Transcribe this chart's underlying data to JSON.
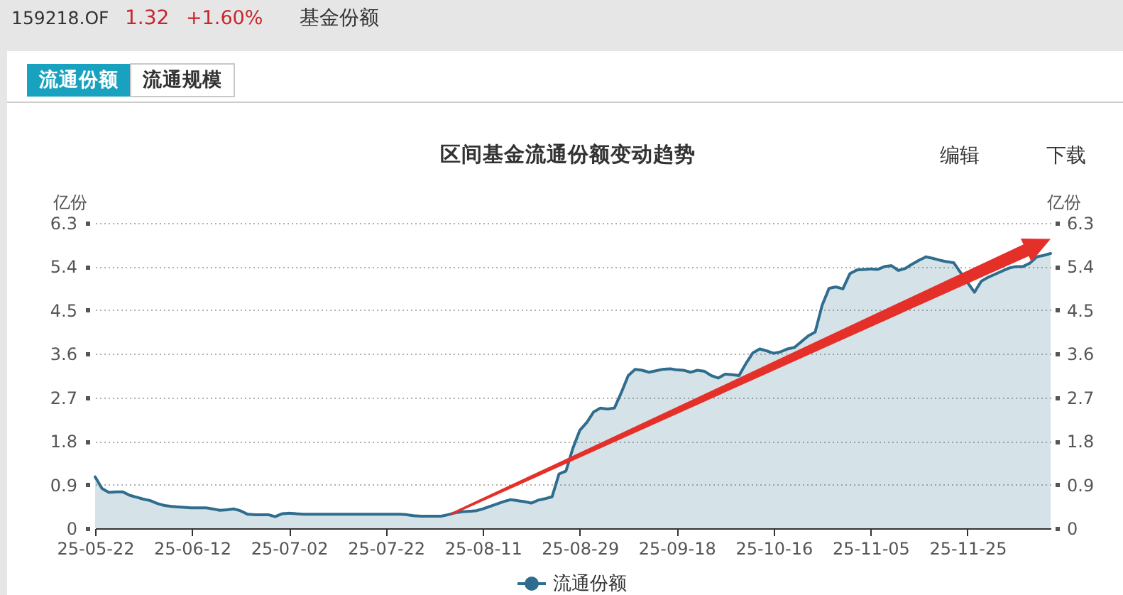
{
  "chart_data": {
    "type": "area",
    "title": "区间基金流通份额变动趋势",
    "ylabel": "亿份",
    "y2label": "亿份",
    "categories": [
      "25-05-22",
      null,
      null,
      null,
      null,
      null,
      null,
      null,
      null,
      null,
      null,
      null,
      null,
      null,
      "25-06-12",
      null,
      null,
      null,
      null,
      null,
      null,
      null,
      null,
      null,
      null,
      null,
      null,
      null,
      "25-07-02",
      null,
      null,
      null,
      null,
      null,
      null,
      null,
      null,
      null,
      null,
      null,
      null,
      null,
      "25-07-22",
      null,
      null,
      null,
      null,
      null,
      null,
      null,
      null,
      null,
      null,
      null,
      null,
      null,
      "25-08-11",
      null,
      null,
      null,
      null,
      null,
      null,
      null,
      null,
      null,
      null,
      null,
      null,
      null,
      "25-08-29",
      null,
      null,
      null,
      null,
      null,
      null,
      null,
      null,
      null,
      null,
      null,
      null,
      null,
      "25-09-18",
      null,
      null,
      null,
      null,
      null,
      null,
      null,
      null,
      null,
      null,
      null,
      null,
      null,
      "25-10-16",
      null,
      null,
      null,
      null,
      null,
      null,
      null,
      null,
      null,
      null,
      null,
      null,
      null,
      "25-11-05",
      null,
      null,
      null,
      null,
      null,
      null,
      null,
      null,
      null,
      null,
      null,
      null,
      null,
      "25-11-25",
      null,
      null,
      null,
      null,
      null,
      null,
      null,
      null,
      null,
      null,
      null,
      null
    ],
    "series": [
      {
        "name": "流通份额",
        "color": "#2e6d8e",
        "values": [
          1.06,
          0.82,
          0.74,
          0.75,
          0.75,
          0.68,
          0.64,
          0.6,
          0.57,
          0.51,
          0.47,
          0.45,
          0.44,
          0.43,
          0.42,
          0.42,
          0.42,
          0.4,
          0.37,
          0.38,
          0.4,
          0.36,
          0.29,
          0.28,
          0.28,
          0.28,
          0.24,
          0.3,
          0.31,
          0.3,
          0.29,
          0.29,
          0.29,
          0.29,
          0.29,
          0.29,
          0.29,
          0.29,
          0.29,
          0.29,
          0.29,
          0.29,
          0.29,
          0.29,
          0.29,
          0.28,
          0.26,
          0.25,
          0.25,
          0.25,
          0.25,
          0.28,
          0.32,
          0.34,
          0.35,
          0.36,
          0.4,
          0.45,
          0.5,
          0.55,
          0.59,
          0.57,
          0.55,
          0.52,
          0.58,
          0.61,
          0.65,
          1.12,
          1.18,
          1.65,
          2.02,
          2.18,
          2.4,
          2.48,
          2.46,
          2.48,
          2.8,
          3.15,
          3.28,
          3.26,
          3.22,
          3.25,
          3.28,
          3.29,
          3.27,
          3.26,
          3.22,
          3.26,
          3.24,
          3.15,
          3.1,
          3.18,
          3.17,
          3.15,
          3.4,
          3.62,
          3.7,
          3.66,
          3.61,
          3.64,
          3.7,
          3.73,
          3.85,
          3.97,
          4.05,
          4.6,
          4.95,
          4.98,
          4.94,
          5.25,
          5.33,
          5.34,
          5.35,
          5.34,
          5.4,
          5.42,
          5.32,
          5.36,
          5.45,
          5.53,
          5.6,
          5.57,
          5.53,
          5.5,
          5.48,
          null,
          null,
          4.87,
          5.1,
          5.18,
          null,
          null,
          5.37,
          5.4,
          5.4,
          5.47,
          5.6,
          5.63,
          5.67
        ]
      }
    ],
    "ylim": [
      0,
      6.3
    ],
    "yticks": [
      0,
      0.9,
      1.8,
      2.7,
      3.6,
      4.5,
      5.4,
      6.3
    ],
    "y2lim": [
      0,
      6.3
    ],
    "y2ticks": [
      0,
      0.9,
      1.8,
      2.7,
      3.6,
      4.5,
      5.4,
      6.3
    ],
    "grid": "y",
    "legend": "bottom",
    "annotations": [
      "159218.OF",
      "1.32",
      "+1.60%",
      "基金份额",
      "流通份额",
      "流通规模",
      "编辑",
      "下载"
    ]
  }
}
